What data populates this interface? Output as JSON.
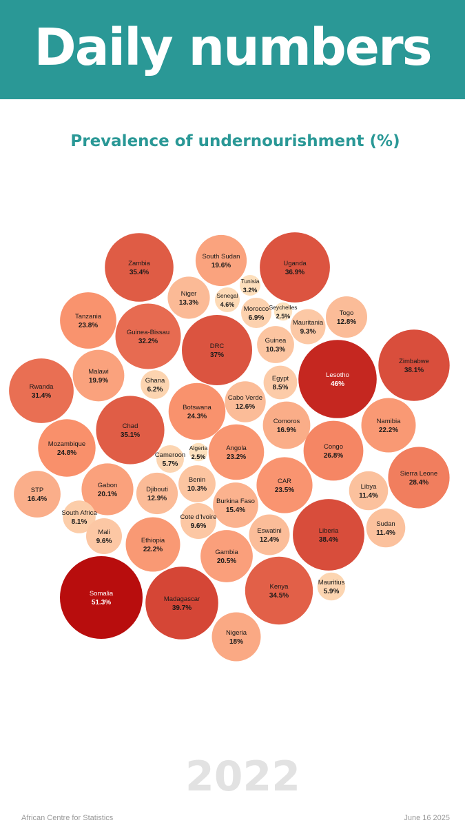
{
  "header": {
    "title": "Daily numbers"
  },
  "chart_data": {
    "type": "bubble",
    "title": "Prevalence of undernourishment (%)",
    "unit": "%",
    "year": "2022",
    "color_scale": {
      "low": "#fde3c0",
      "mid": "#f98f6a",
      "high": "#b80d0d"
    },
    "series": [
      {
        "name": "Zambia",
        "label": "35.4%",
        "value": 35.4
      },
      {
        "name": "South Sudan",
        "label": "19.6%",
        "value": 19.6
      },
      {
        "name": "Uganda",
        "label": "36.9%",
        "value": 36.9
      },
      {
        "name": "Tunisia",
        "label": "3.2%",
        "value": 3.2
      },
      {
        "name": "Niger",
        "label": "13.3%",
        "value": 13.3
      },
      {
        "name": "Senegal",
        "label": "4.6%",
        "value": 4.6
      },
      {
        "name": "Morocco",
        "label": "6.9%",
        "value": 6.9
      },
      {
        "name": "Seychelles",
        "label": "2.5%",
        "value": 2.5
      },
      {
        "name": "Tanzania",
        "label": "23.8%",
        "value": 23.8
      },
      {
        "name": "Guinea-Bissau",
        "label": "32.2%",
        "value": 32.2
      },
      {
        "name": "Togo",
        "label": "12.8%",
        "value": 12.8
      },
      {
        "name": "Mauritania",
        "label": "9.3%",
        "value": 9.3
      },
      {
        "name": "DRC",
        "label": "37%",
        "value": 37
      },
      {
        "name": "Guinea",
        "label": "10.3%",
        "value": 10.3
      },
      {
        "name": "Lesotho",
        "label": "46%",
        "value": 46
      },
      {
        "name": "Zimbabwe",
        "label": "38.1%",
        "value": 38.1
      },
      {
        "name": "Malawi",
        "label": "19.9%",
        "value": 19.9
      },
      {
        "name": "Rwanda",
        "label": "31.4%",
        "value": 31.4
      },
      {
        "name": "Ghana",
        "label": "6.2%",
        "value": 6.2
      },
      {
        "name": "Egypt",
        "label": "8.5%",
        "value": 8.5
      },
      {
        "name": "Cabo Verde",
        "label": "12.6%",
        "value": 12.6
      },
      {
        "name": "Botswana",
        "label": "24.3%",
        "value": 24.3
      },
      {
        "name": "Namibia",
        "label": "22.2%",
        "value": 22.2
      },
      {
        "name": "Comoros",
        "label": "16.9%",
        "value": 16.9
      },
      {
        "name": "Chad",
        "label": "35.1%",
        "value": 35.1
      },
      {
        "name": "Mozambique",
        "label": "24.8%",
        "value": 24.8
      },
      {
        "name": "Algeria",
        "label": "2.5%",
        "value": 2.5
      },
      {
        "name": "Cameroon",
        "label": "5.7%",
        "value": 5.7
      },
      {
        "name": "Angola",
        "label": "23.2%",
        "value": 23.2
      },
      {
        "name": "Congo",
        "label": "26.8%",
        "value": 26.8
      },
      {
        "name": "Sierra Leone",
        "label": "28.4%",
        "value": 28.4
      },
      {
        "name": "STP",
        "label": "16.4%",
        "value": 16.4
      },
      {
        "name": "Gabon",
        "label": "20.1%",
        "value": 20.1
      },
      {
        "name": "Djibouti",
        "label": "12.9%",
        "value": 12.9
      },
      {
        "name": "Benin",
        "label": "10.3%",
        "value": 10.3
      },
      {
        "name": "CAR",
        "label": "23.5%",
        "value": 23.5
      },
      {
        "name": "Libya",
        "label": "11.4%",
        "value": 11.4
      },
      {
        "name": "Burkina Faso",
        "label": "15.4%",
        "value": 15.4
      },
      {
        "name": "South Africa",
        "label": "8.1%",
        "value": 8.1
      },
      {
        "name": "Mali",
        "label": "9.6%",
        "value": 9.6
      },
      {
        "name": "Cote d'Ivoire",
        "label": "9.6%",
        "value": 9.6
      },
      {
        "name": "Eswatini",
        "label": "12.4%",
        "value": 12.4
      },
      {
        "name": "Liberia",
        "label": "38.4%",
        "value": 38.4
      },
      {
        "name": "Sudan",
        "label": "11.4%",
        "value": 11.4
      },
      {
        "name": "Ethiopia",
        "label": "22.2%",
        "value": 22.2
      },
      {
        "name": "Gambia",
        "label": "20.5%",
        "value": 20.5
      },
      {
        "name": "Kenya",
        "label": "34.5%",
        "value": 34.5
      },
      {
        "name": "Mauritius",
        "label": "5.9%",
        "value": 5.9
      },
      {
        "name": "Somalia",
        "label": "51.3%",
        "value": 51.3
      },
      {
        "name": "Madagascar",
        "label": "39.7%",
        "value": 39.7
      },
      {
        "name": "Nigeria",
        "label": "18%",
        "value": 18
      }
    ]
  },
  "footer": {
    "source": "African Centre for Statistics",
    "date": "June 16 2025"
  }
}
